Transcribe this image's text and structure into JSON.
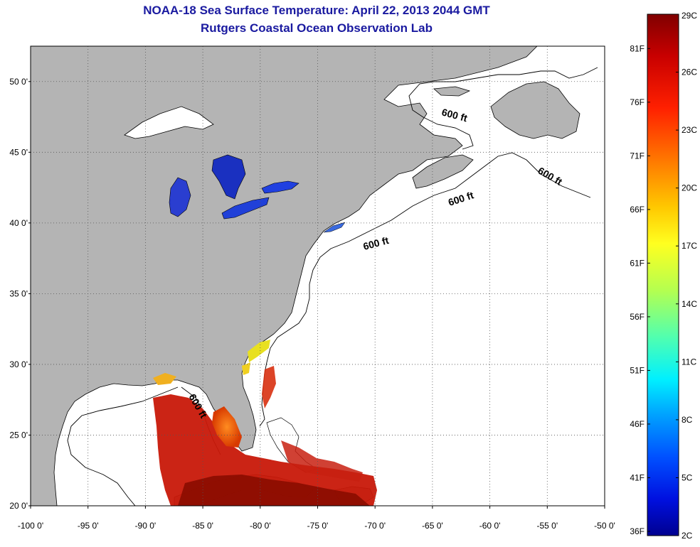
{
  "title": {
    "line1": "NOAA-18 Sea Surface Temperature:  April 22, 2013 2044 GMT",
    "line2": "Rutgers Coastal Ocean Observation Lab"
  },
  "axes": {
    "lat_ticks": [
      "50 0'",
      "45 0'",
      "40 0'",
      "35 0'",
      "30 0'",
      "25 0'",
      "20 0'"
    ],
    "lat_values": [
      50,
      45,
      40,
      35,
      30,
      25,
      20
    ],
    "lon_ticks": [
      "-100 0'",
      "-95 0'",
      "-90 0'",
      "-85 0'",
      "-80 0'",
      "-75 0'",
      "-70 0'",
      "-65 0'",
      "-60 0'",
      "-55 0'",
      "-50 0'"
    ],
    "lon_values": [
      -100,
      -95,
      -90,
      -85,
      -80,
      -75,
      -70,
      -65,
      -60,
      -55,
      -50
    ],
    "lon_range": [
      -100,
      -50
    ],
    "lat_range": [
      20,
      52.5
    ],
    "grid": true
  },
  "contour_labels": [
    "600 ft",
    "600 ft",
    "600 ft",
    "600 ft",
    "600 ft"
  ],
  "colorbar": {
    "celsius_labels": [
      "29C",
      "26C",
      "23C",
      "20C",
      "17C",
      "14C",
      "11C",
      "8C",
      "5C",
      "2C"
    ],
    "fahrenheit_labels": [
      "81F",
      "76F",
      "71F",
      "66F",
      "61F",
      "56F",
      "51F",
      "46F",
      "41F",
      "36F"
    ],
    "celsius_values": [
      29,
      26,
      23,
      20,
      17,
      14,
      11,
      8,
      5,
      2
    ],
    "fahrenheit_values": [
      81,
      76,
      71,
      66,
      61,
      56,
      51,
      46,
      41,
      36
    ],
    "range_c": [
      2,
      29
    ],
    "colors": [
      "#800000",
      "#c80000",
      "#ff2000",
      "#ff7800",
      "#ffc800",
      "#ffff20",
      "#b4ff50",
      "#50ffb0",
      "#00f0ff",
      "#00a0ff",
      "#0050ff",
      "#0010e0",
      "#000090"
    ]
  },
  "colors": {
    "land": "#b4b4b4",
    "ocean": "#ffffff",
    "title": "#1a1aa0",
    "lake": "#1e32c8"
  }
}
